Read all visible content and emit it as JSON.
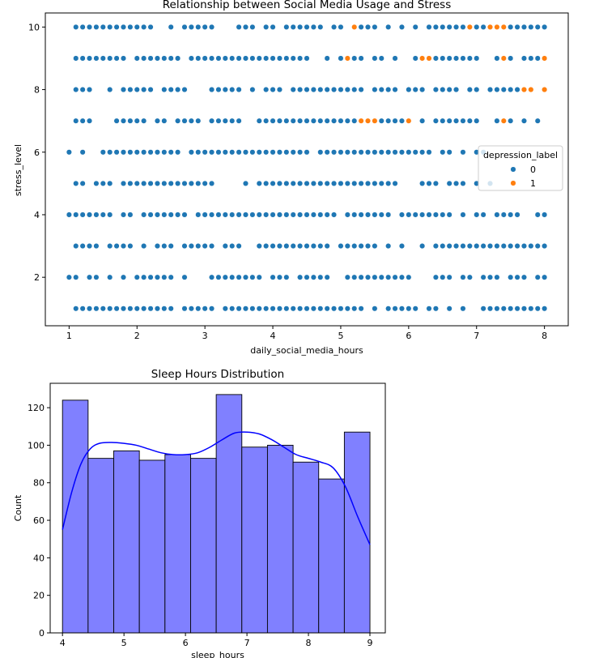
{
  "chart_data": [
    {
      "type": "scatter",
      "title": "Relationship between Social Media Usage and Stress",
      "xlabel": "daily_social_media_hours",
      "ylabel": "stress_level",
      "xlim": [
        0.65,
        8.35
      ],
      "ylim": [
        0.45,
        10.45
      ],
      "xticks": [
        1,
        2,
        3,
        4,
        5,
        6,
        7,
        8
      ],
      "yticks": [
        2,
        4,
        6,
        8,
        10
      ],
      "grid": false,
      "legend": {
        "title": "depression_label",
        "placement": "center-right",
        "entries": [
          {
            "label": "0",
            "color": "#1f77b4"
          },
          {
            "label": "1",
            "color": "#ff7f0e"
          }
        ]
      },
      "series": [
        {
          "name": "0",
          "color": "#1f77b4",
          "rows": [
            {
              "y": 10,
              "x": [
                1.1,
                1.2,
                1.3,
                1.4,
                1.5,
                1.6,
                1.7,
                1.8,
                1.9,
                2.0,
                2.1,
                2.2,
                2.5,
                2.7,
                2.8,
                2.9,
                3.0,
                3.1,
                3.5,
                3.6,
                3.7,
                3.9,
                4.0,
                4.2,
                4.3,
                4.4,
                4.5,
                4.6,
                4.7,
                4.9,
                5.0,
                5.3,
                5.4,
                5.5,
                5.7,
                5.9,
                6.1,
                6.3,
                6.4,
                6.5,
                6.6,
                6.7,
                6.8,
                7.0,
                7.1,
                7.5,
                7.6,
                7.7,
                7.8,
                7.9,
                8.0
              ]
            },
            {
              "y": 9,
              "x": [
                1.1,
                1.2,
                1.3,
                1.4,
                1.5,
                1.6,
                1.7,
                1.8,
                2.0,
                2.1,
                2.2,
                2.3,
                2.4,
                2.5,
                2.6,
                2.8,
                2.9,
                3.0,
                3.1,
                3.2,
                3.3,
                3.4,
                3.5,
                3.6,
                3.7,
                3.8,
                3.9,
                4.0,
                4.1,
                4.2,
                4.3,
                4.4,
                4.5,
                4.8,
                5.0,
                5.2,
                5.3,
                5.5,
                5.6,
                5.8,
                6.1,
                6.4,
                6.5,
                6.6,
                6.7,
                6.8,
                6.9,
                7.0,
                7.3,
                7.5,
                7.7,
                7.8,
                7.9
              ]
            },
            {
              "y": 8,
              "x": [
                1.1,
                1.2,
                1.3,
                1.6,
                1.8,
                1.9,
                2.0,
                2.1,
                2.2,
                2.4,
                2.5,
                2.6,
                2.7,
                3.1,
                3.2,
                3.3,
                3.4,
                3.5,
                3.7,
                3.9,
                4.0,
                4.1,
                4.3,
                4.4,
                4.5,
                4.6,
                4.7,
                4.8,
                4.9,
                5.0,
                5.1,
                5.2,
                5.3,
                5.5,
                5.6,
                5.7,
                5.8,
                6.0,
                6.1,
                6.2,
                6.4,
                6.5,
                6.6,
                6.7,
                6.9,
                7.0,
                7.2,
                7.3,
                7.4,
                7.5,
                7.6
              ]
            },
            {
              "y": 7,
              "x": [
                1.1,
                1.2,
                1.3,
                1.7,
                1.8,
                1.9,
                2.0,
                2.1,
                2.3,
                2.4,
                2.6,
                2.7,
                2.8,
                2.9,
                3.1,
                3.2,
                3.3,
                3.4,
                3.5,
                3.8,
                3.9,
                4.0,
                4.1,
                4.2,
                4.3,
                4.4,
                4.5,
                4.6,
                4.7,
                4.8,
                4.9,
                5.0,
                5.1,
                5.2,
                5.6,
                5.7,
                5.8,
                5.9,
                6.2,
                6.4,
                6.5,
                6.6,
                6.7,
                6.8,
                6.9,
                7.0,
                7.3,
                7.5,
                7.7,
                7.9
              ]
            },
            {
              "y": 6,
              "x": [
                1.0,
                1.2,
                1.5,
                1.6,
                1.7,
                1.8,
                1.9,
                2.0,
                2.1,
                2.2,
                2.3,
                2.4,
                2.5,
                2.6,
                2.8,
                2.9,
                3.0,
                3.1,
                3.2,
                3.3,
                3.4,
                3.5,
                3.6,
                3.7,
                3.8,
                3.9,
                4.0,
                4.1,
                4.2,
                4.3,
                4.4,
                4.5,
                4.7,
                4.8,
                4.9,
                5.0,
                5.1,
                5.2,
                5.3,
                5.4,
                5.5,
                5.6,
                5.7,
                5.8,
                5.9,
                6.0,
                6.1,
                6.2,
                6.3,
                6.5,
                6.6,
                6.8,
                7.0,
                7.1
              ]
            },
            {
              "y": 5,
              "x": [
                1.1,
                1.2,
                1.4,
                1.5,
                1.6,
                1.8,
                1.9,
                2.0,
                2.1,
                2.2,
                2.3,
                2.4,
                2.5,
                2.6,
                2.7,
                2.8,
                2.9,
                3.0,
                3.1,
                3.6,
                3.8,
                3.9,
                4.0,
                4.1,
                4.2,
                4.3,
                4.4,
                4.5,
                4.6,
                4.7,
                4.8,
                4.9,
                5.0,
                5.1,
                5.2,
                5.3,
                5.4,
                5.5,
                5.6,
                5.7,
                5.8,
                6.2,
                6.3,
                6.4,
                6.6,
                6.7,
                6.8,
                7.0,
                7.2
              ]
            },
            {
              "y": 4,
              "x": [
                1.0,
                1.1,
                1.2,
                1.3,
                1.4,
                1.5,
                1.6,
                1.8,
                1.9,
                2.1,
                2.2,
                2.3,
                2.4,
                2.5,
                2.6,
                2.7,
                2.9,
                3.0,
                3.1,
                3.2,
                3.3,
                3.4,
                3.5,
                3.6,
                3.7,
                3.8,
                3.9,
                4.0,
                4.1,
                4.2,
                4.3,
                4.4,
                4.5,
                4.6,
                4.7,
                4.8,
                4.9,
                5.1,
                5.2,
                5.3,
                5.4,
                5.5,
                5.6,
                5.7,
                5.9,
                6.0,
                6.1,
                6.2,
                6.3,
                6.4,
                6.5,
                6.6,
                6.8,
                7.0,
                7.1,
                7.3,
                7.4,
                7.5,
                7.6,
                7.9,
                8.0
              ]
            },
            {
              "y": 3,
              "x": [
                1.1,
                1.2,
                1.3,
                1.4,
                1.6,
                1.7,
                1.8,
                1.9,
                2.1,
                2.3,
                2.4,
                2.5,
                2.7,
                2.8,
                2.9,
                3.0,
                3.1,
                3.3,
                3.4,
                3.5,
                3.8,
                3.9,
                4.0,
                4.1,
                4.2,
                4.3,
                4.4,
                4.5,
                4.6,
                4.7,
                4.8,
                5.0,
                5.1,
                5.2,
                5.3,
                5.4,
                5.5,
                5.7,
                5.9,
                6.2,
                6.4,
                6.5,
                6.6,
                6.7,
                6.8,
                6.9,
                7.0,
                7.1,
                7.2,
                7.3,
                7.4,
                7.5,
                7.6,
                7.7,
                7.8,
                7.9,
                8.0
              ]
            },
            {
              "y": 2,
              "x": [
                1.0,
                1.1,
                1.3,
                1.4,
                1.6,
                1.8,
                2.0,
                2.1,
                2.2,
                2.3,
                2.4,
                2.5,
                2.7,
                3.1,
                3.2,
                3.3,
                3.4,
                3.5,
                3.6,
                3.7,
                3.8,
                4.0,
                4.1,
                4.2,
                4.4,
                4.5,
                4.6,
                4.7,
                4.8,
                5.1,
                5.2,
                5.3,
                5.4,
                5.5,
                5.6,
                5.7,
                5.8,
                5.9,
                6.0,
                6.4,
                6.5,
                6.6,
                6.8,
                6.9,
                7.1,
                7.2,
                7.3,
                7.5,
                7.6,
                7.7,
                7.9,
                8.0
              ]
            },
            {
              "y": 1,
              "x": [
                1.1,
                1.2,
                1.3,
                1.4,
                1.5,
                1.6,
                1.7,
                1.8,
                1.9,
                2.0,
                2.1,
                2.2,
                2.3,
                2.4,
                2.5,
                2.7,
                2.8,
                2.9,
                3.0,
                3.1,
                3.3,
                3.4,
                3.5,
                3.6,
                3.7,
                3.8,
                3.9,
                4.0,
                4.1,
                4.2,
                4.3,
                4.4,
                4.5,
                4.6,
                4.7,
                4.8,
                4.9,
                5.0,
                5.1,
                5.2,
                5.3,
                5.5,
                5.7,
                5.8,
                5.9,
                6.0,
                6.1,
                6.3,
                6.4,
                6.6,
                6.8,
                7.1,
                7.2,
                7.3,
                7.4,
                7.5,
                7.6,
                7.7,
                7.8,
                7.9,
                8.0
              ]
            }
          ]
        },
        {
          "name": "1",
          "color": "#ff7f0e",
          "points": [
            {
              "x": 5.2,
              "y": 10
            },
            {
              "x": 6.9,
              "y": 10
            },
            {
              "x": 7.2,
              "y": 10
            },
            {
              "x": 7.3,
              "y": 10
            },
            {
              "x": 7.4,
              "y": 10
            },
            {
              "x": 5.1,
              "y": 9
            },
            {
              "x": 6.2,
              "y": 9
            },
            {
              "x": 6.3,
              "y": 9
            },
            {
              "x": 7.4,
              "y": 9
            },
            {
              "x": 8.0,
              "y": 9
            },
            {
              "x": 7.7,
              "y": 8
            },
            {
              "x": 7.8,
              "y": 8
            },
            {
              "x": 8.0,
              "y": 8
            },
            {
              "x": 5.3,
              "y": 7
            },
            {
              "x": 5.4,
              "y": 7
            },
            {
              "x": 5.5,
              "y": 7
            },
            {
              "x": 6.0,
              "y": 7
            },
            {
              "x": 7.4,
              "y": 7
            }
          ]
        }
      ]
    },
    {
      "type": "histogram",
      "title": "Sleep Hours Distribution",
      "xlabel": "sleep_hours",
      "ylabel": "Count",
      "xlim": [
        3.8,
        9.25
      ],
      "ylim": [
        0,
        133
      ],
      "xticks": [
        4,
        5,
        6,
        7,
        8,
        9
      ],
      "yticks": [
        0,
        20,
        40,
        60,
        80,
        100,
        120
      ],
      "bins": {
        "start": 4.0,
        "width": 0.4167
      },
      "values": [
        124,
        93,
        97,
        92,
        95,
        93,
        127,
        99,
        100,
        91,
        82,
        107
      ],
      "bar_color": "#8080ff",
      "kde": {
        "color": "#0000ff",
        "x": [
          4.0,
          4.15,
          4.3,
          4.45,
          4.6,
          4.8,
          5.0,
          5.2,
          5.4,
          5.6,
          5.8,
          6.0,
          6.2,
          6.4,
          6.6,
          6.8,
          7.0,
          7.2,
          7.4,
          7.6,
          7.8,
          8.0,
          8.2,
          8.4,
          8.6,
          8.8,
          9.0
        ],
        "y": [
          55,
          75,
          90,
          98,
          101,
          101.5,
          101,
          100,
          98,
          96,
          95,
          95,
          96,
          99,
          103,
          106.5,
          107,
          106,
          103,
          99,
          95,
          93,
          91,
          88,
          78,
          62,
          47
        ]
      }
    }
  ]
}
